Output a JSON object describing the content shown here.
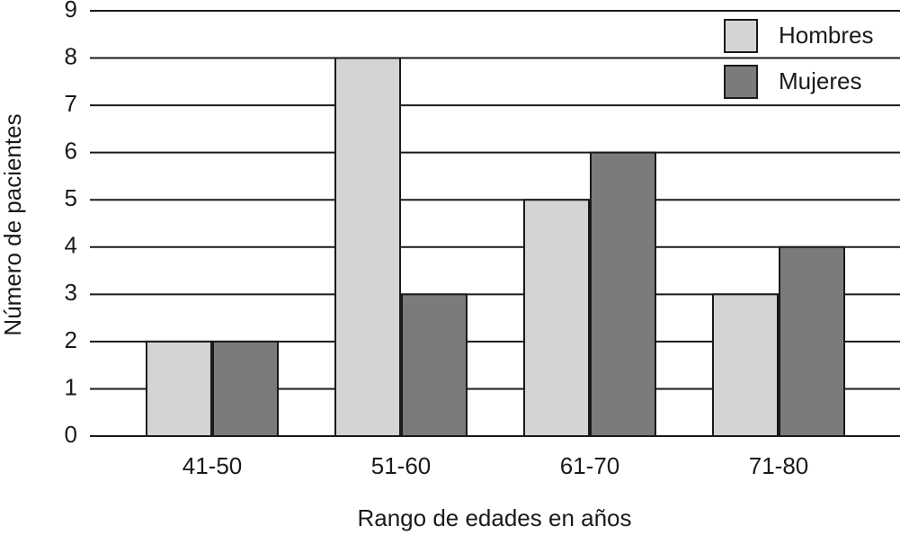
{
  "chart_data": {
    "type": "bar",
    "x_label": "Rango de edades en años",
    "y_label": "Número de pacientes",
    "categories": [
      "41-50",
      "51-60",
      "61-70",
      "71-80"
    ],
    "series": [
      {
        "name": "Hombres",
        "color": "#d4d4d4",
        "values": [
          2,
          8,
          5,
          3
        ]
      },
      {
        "name": "Mujeres",
        "color": "#7b7b7d",
        "values": [
          2,
          3,
          6,
          4
        ]
      }
    ],
    "ylim": [
      0,
      9
    ],
    "yticks": [
      0,
      1,
      2,
      3,
      4,
      5,
      6,
      7,
      8,
      9
    ],
    "grid": true,
    "legend": "upper right"
  }
}
